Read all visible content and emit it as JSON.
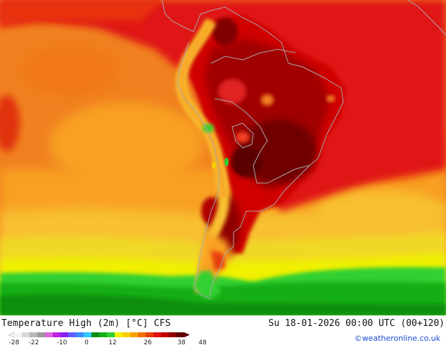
{
  "title": "Temperature High (2m) [°C] CFS",
  "datetime": "Su 18-01-2026 00:00 UTC (00+120)",
  "credit": "©weatheronline.co.uk",
  "legend": {
    "ticks": [
      "-28",
      "-22",
      "-10",
      "0",
      "12",
      "26",
      "38",
      "48"
    ],
    "colors": [
      "#f4f4f4",
      "#d8d8d8",
      "#b8b8b8",
      "#9a9a9a",
      "#e060e0",
      "#c020e0",
      "#8a20f0",
      "#6060ff",
      "#3a8cff",
      "#30c8ff",
      "#108e10",
      "#18ae18",
      "#30d030",
      "#f0f000",
      "#f8d000",
      "#f8a000",
      "#f07000",
      "#e84000",
      "#e01010",
      "#c00000",
      "#900000",
      "#600000"
    ]
  }
}
